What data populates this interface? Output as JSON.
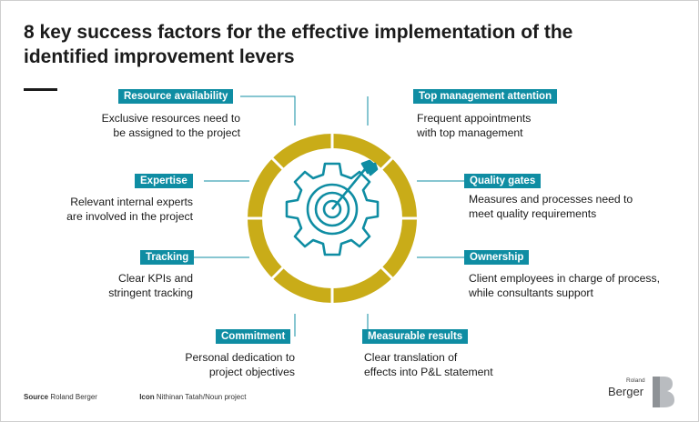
{
  "title": "8 key success factors for the effective implementation of the identified improvement levers",
  "factors": [
    {
      "label": "Resource availability",
      "desc_lines": [
        "Exclusive resources need to",
        "be assigned to the project"
      ]
    },
    {
      "label": "Top management attention",
      "desc_lines": [
        "Frequent appointments",
        "with top management"
      ]
    },
    {
      "label": "Expertise",
      "desc_lines": [
        "Relevant internal experts",
        "are involved in the project"
      ]
    },
    {
      "label": "Quality gates",
      "desc_lines": [
        "Measures and processes need to",
        "meet quality requirements"
      ]
    },
    {
      "label": "Tracking",
      "desc_lines": [
        "Clear KPIs and",
        "stringent tracking"
      ]
    },
    {
      "label": "Ownership",
      "desc_lines": [
        "Client employees in charge of process,",
        "while consultants support"
      ]
    },
    {
      "label": "Commitment",
      "desc_lines": [
        "Personal dedication to",
        "project objectives"
      ]
    },
    {
      "label": "Measurable results",
      "desc_lines": [
        "Clear translation of",
        "effects into P&L statement"
      ]
    }
  ],
  "footer": {
    "source_label": "Source",
    "source_value": "Roland Berger",
    "icon_label": "Icon",
    "icon_value": "Nithinan Tatah/Noun project"
  },
  "logo": {
    "small": "Roland",
    "main": "Berger"
  },
  "colors": {
    "teal": "#0f8da3",
    "gold": "#c9ac18",
    "text": "#1a1a1a",
    "icon": "target-gear-icon"
  }
}
